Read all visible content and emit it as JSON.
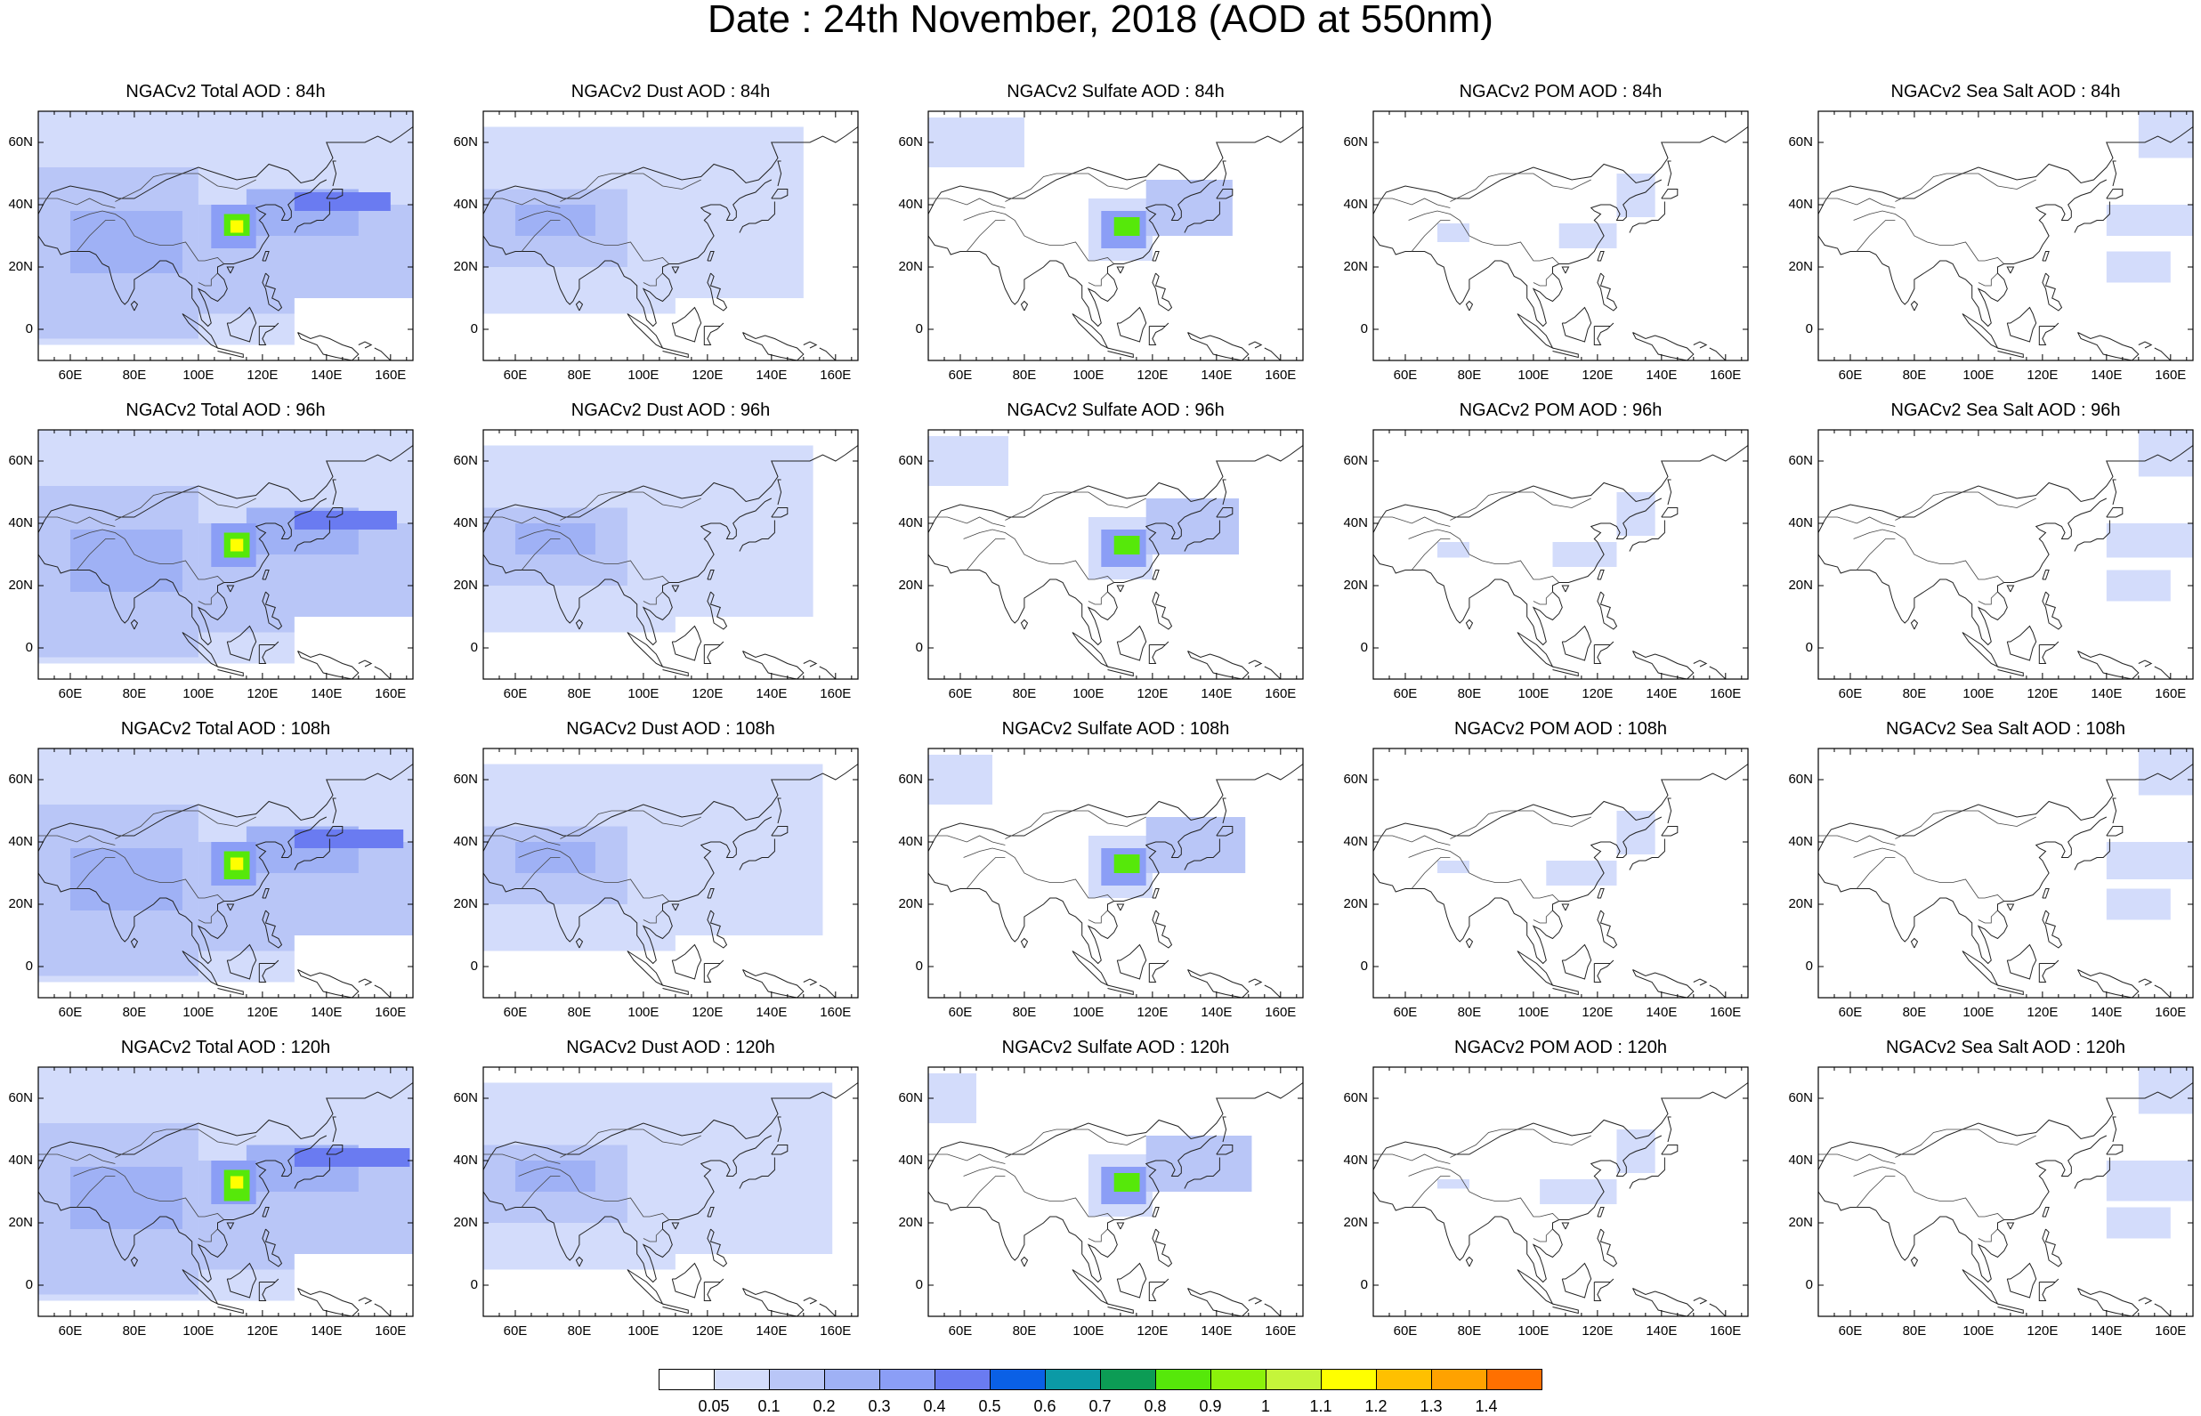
{
  "title": "Date : 24th November, 2018 (AOD at 550nm)",
  "panel_rows": [
    [
      "NGACv2 Total AOD : 84h",
      "NGACv2 Dust AOD : 84h",
      "NGACv2 Sulfate AOD : 84h",
      "NGACv2 POM AOD : 84h",
      "NGACv2 Sea Salt AOD : 84h"
    ],
    [
      "NGACv2 Total AOD : 96h",
      "NGACv2 Dust AOD : 96h",
      "NGACv2 Sulfate AOD : 96h",
      "NGACv2 POM AOD : 96h",
      "NGACv2 Sea Salt AOD : 96h"
    ],
    [
      "NGACv2 Total AOD : 108h",
      "NGACv2 Dust AOD : 108h",
      "NGACv2 Sulfate AOD : 108h",
      "NGACv2 POM AOD : 108h",
      "NGACv2 Sea Salt AOD : 108h"
    ],
    [
      "NGACv2 Total AOD : 120h",
      "NGACv2 Dust AOD : 120h",
      "NGACv2 Sulfate AOD : 120h",
      "NGACv2 POM AOD : 120h",
      "NGACv2 Sea Salt  AOD : 120h"
    ]
  ],
  "lat_ticks": [
    "60N",
    "40N",
    "20N",
    "0"
  ],
  "lon_ticks": [
    "60E",
    "80E",
    "100E",
    "120E",
    "140E",
    "160E"
  ],
  "colorbar": {
    "colors": [
      "#ffffff",
      "#d3dcfb",
      "#b9c6f7",
      "#9fb1f5",
      "#8b9ef6",
      "#6a7bf1",
      "#0a60e6",
      "#0b9aa6",
      "#0c9c55",
      "#56e80a",
      "#8bf20b",
      "#c5f53a",
      "#ffff00",
      "#ffc000",
      "#ffa200",
      "#ff7000",
      "#ff2020"
    ],
    "labels": [
      "0.05",
      "0.1",
      "0.2",
      "0.3",
      "0.4",
      "0.5",
      "0.6",
      "0.7",
      "0.8",
      "0.9",
      "1",
      "1.1",
      "1.2",
      "1.3",
      "1.4"
    ]
  }
}
